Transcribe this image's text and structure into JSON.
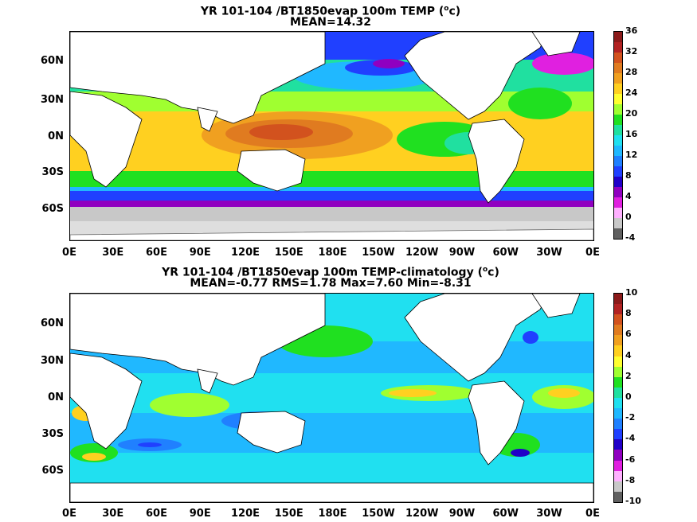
{
  "panels": [
    {
      "title_line1": "YR 101-104 /BT1850evap 100m TEMP (",
      "unit_sup": "o",
      "title_unit_end": "c)",
      "title_line2": "MEAN=14.32",
      "colorbar": {
        "labels": [
          "36",
          "32",
          "28",
          "24",
          "20",
          "16",
          "12",
          "8",
          "4",
          "0",
          "-4"
        ],
        "colors": [
          "#8b1a1a",
          "#b22222",
          "#d2521e",
          "#e07b20",
          "#f0a020",
          "#ffd020",
          "#ffff30",
          "#a0ff30",
          "#20e020",
          "#20e0a0",
          "#20e0f0",
          "#20b8ff",
          "#2080ff",
          "#2040ff",
          "#2000c8",
          "#9000c0",
          "#e020e0",
          "#ffb0ff",
          "#c8c8c8",
          "#606060"
        ]
      }
    },
    {
      "title_line1": "YR 101-104 /BT1850evap 100m TEMP-climatology (",
      "unit_sup": "o",
      "title_unit_end": "c)",
      "title_line2": "MEAN=-0.77   RMS=1.78   Max=7.60   Min=-8.31",
      "colorbar": {
        "labels": [
          "10",
          "8",
          "6",
          "4",
          "2",
          "0",
          "-2",
          "-4",
          "-6",
          "-8",
          "-10"
        ],
        "colors": [
          "#8b1a1a",
          "#b22222",
          "#d2521e",
          "#e07b20",
          "#f0a020",
          "#ffd020",
          "#ffff30",
          "#a0ff30",
          "#20e020",
          "#20e0a0",
          "#20e0f0",
          "#20b8ff",
          "#2080ff",
          "#2040ff",
          "#2000c8",
          "#9000c0",
          "#e020e0",
          "#ffb0ff",
          "#c8c8c8",
          "#606060"
        ]
      }
    }
  ],
  "x_ticks": [
    "0E",
    "30E",
    "60E",
    "90E",
    "120E",
    "150E",
    "180E",
    "150W",
    "120W",
    "90W",
    "60W",
    "30W",
    "0E"
  ],
  "y_ticks": [
    "60N",
    "30N",
    "0N",
    "30S",
    "60S"
  ]
}
